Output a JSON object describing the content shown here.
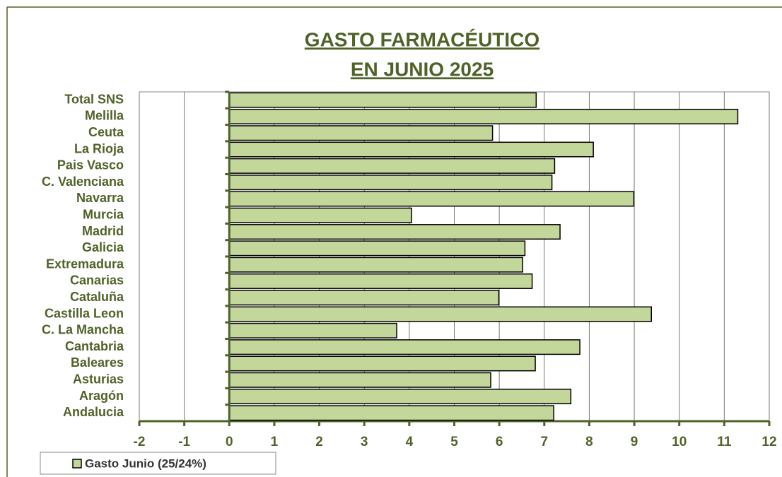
{
  "chart_data": {
    "type": "barh",
    "title": [
      "GASTO FARMACÉUTICO",
      "EN JUNIO 2025"
    ],
    "categories": [
      "Total SNS",
      "Melilla",
      "Ceuta",
      "La Rioja",
      "Pais Vasco",
      "C. Valenciana",
      "Navarra",
      "Murcia",
      "Madrid",
      "Galicia",
      "Extremadura",
      "Canarias",
      "Cataluña",
      "Castilla Leon",
      "C. La Mancha",
      "Cantabria",
      "Baleares",
      "Asturias",
      "Aragón",
      "Andalucia"
    ],
    "series": [
      {
        "name": "Gasto Junio (25/24%)",
        "color": "#c4d79b",
        "values": [
          6.82,
          11.3,
          5.85,
          8.09,
          7.23,
          7.17,
          8.99,
          4.05,
          7.35,
          6.57,
          6.52,
          6.73,
          5.99,
          9.38,
          3.72,
          7.79,
          6.8,
          5.81,
          7.59,
          7.21
        ]
      }
    ],
    "xlim": [
      -2,
      12
    ],
    "xticks": [
      -2,
      -1,
      0,
      1,
      2,
      3,
      4,
      5,
      6,
      7,
      8,
      9,
      10,
      11,
      12
    ],
    "grid": true,
    "legend": "bottom-left"
  }
}
